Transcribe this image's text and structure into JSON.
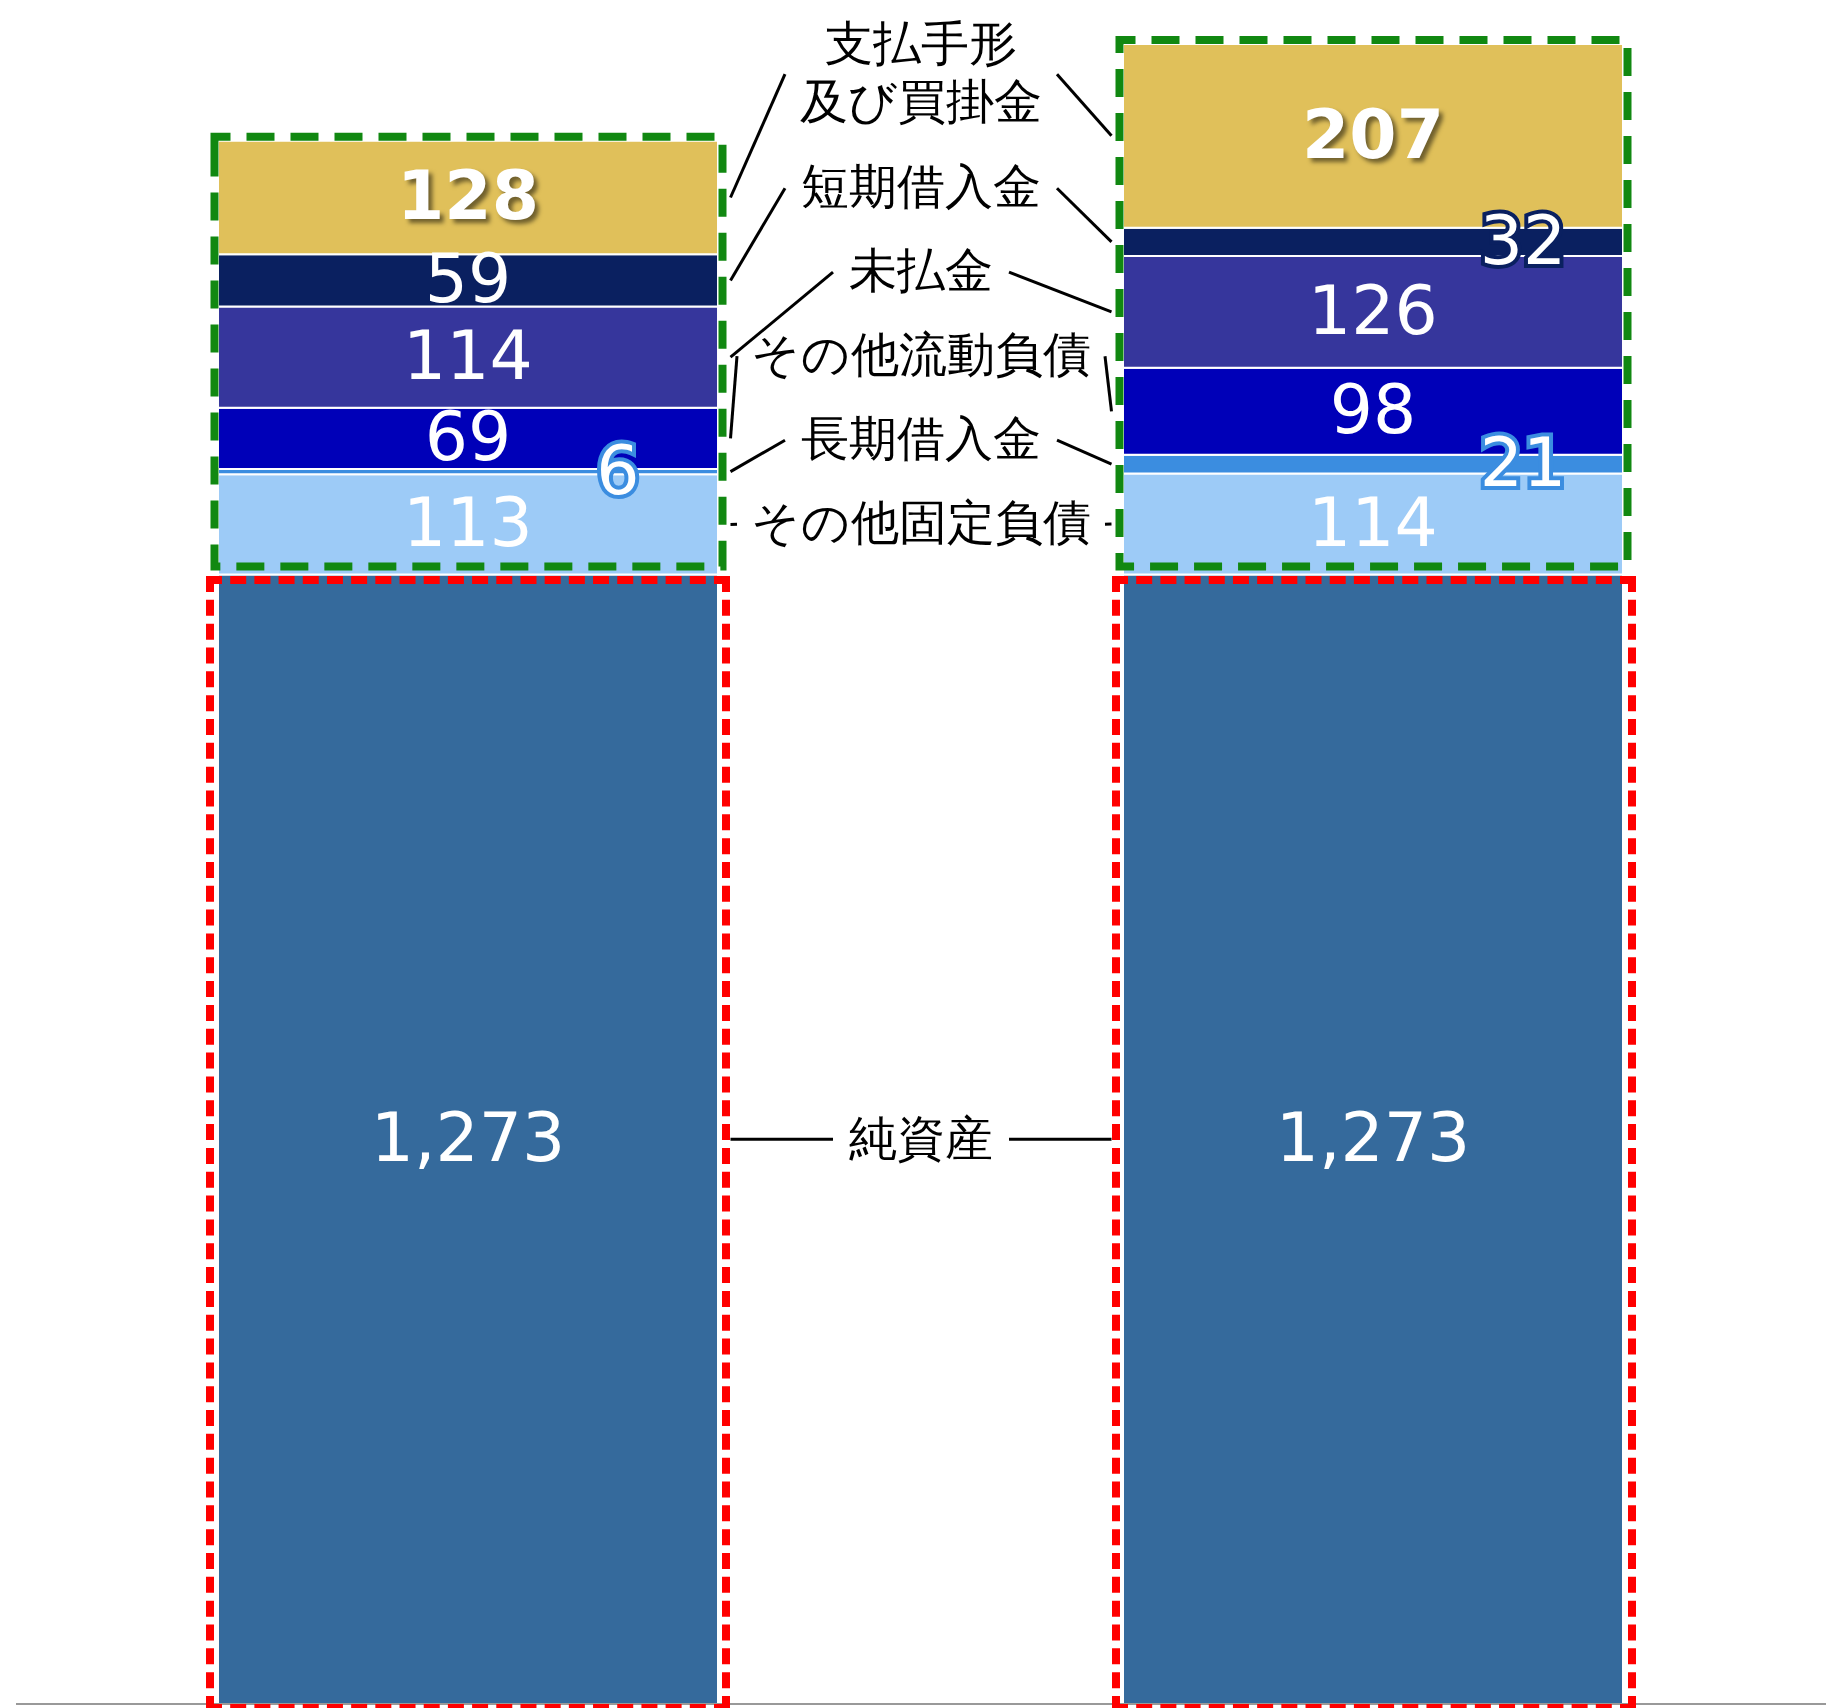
{
  "chart_data": {
    "type": "bar",
    "stacked": true,
    "categories": [
      null,
      null
    ],
    "data_labels": true,
    "series": [
      {
        "name": "純資産",
        "color": "#356a9c",
        "values": [
          1273,
          1273
        ],
        "value_labels": [
          "1,273",
          "1,273"
        ]
      },
      {
        "name": "その他固定負債",
        "color": "#9dcbf7",
        "values": [
          113,
          114
        ]
      },
      {
        "name": "長期借入金",
        "color": "#3b8de0",
        "values": [
          6,
          21
        ]
      },
      {
        "name": "その他流動負債",
        "color": "#0000b8",
        "values": [
          69,
          98
        ]
      },
      {
        "name": "未払金",
        "color": "#36369c",
        "values": [
          114,
          126
        ]
      },
      {
        "name": "短期借入金",
        "color": "#0a2060",
        "values": [
          59,
          32
        ]
      },
      {
        "name": "支払手形及び買掛金",
        "color": "#e0c05a",
        "values": [
          128,
          207
        ]
      }
    ]
  }
}
